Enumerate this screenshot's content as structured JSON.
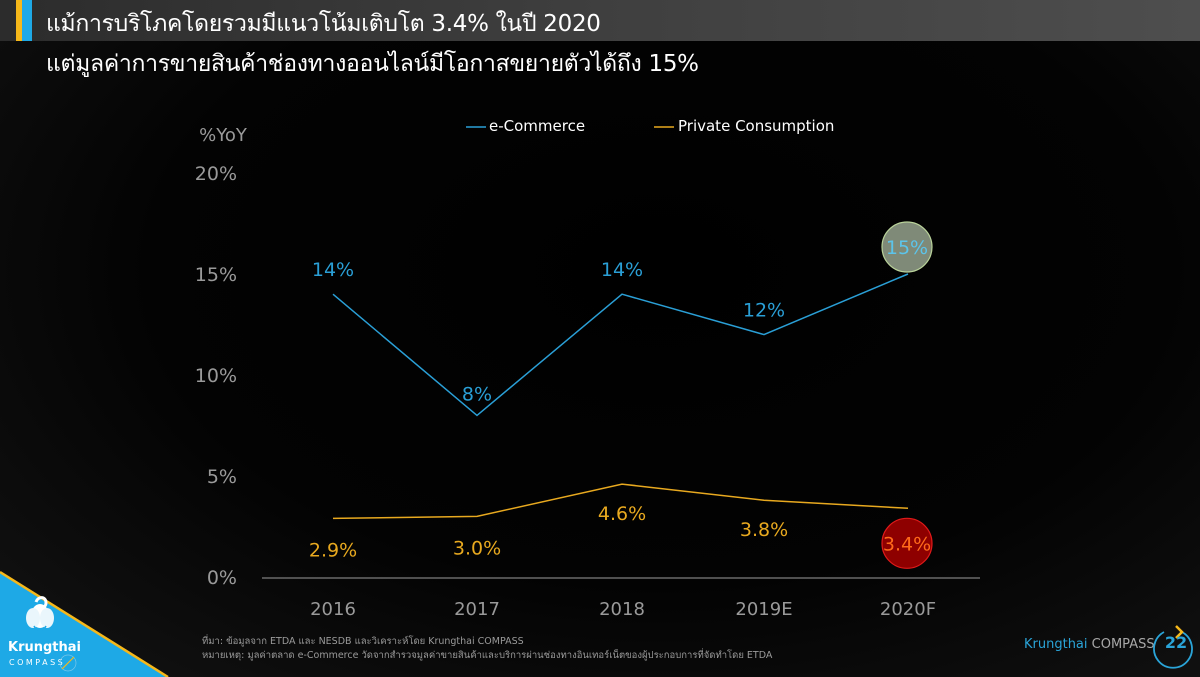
{
  "header": {
    "title_line1": "แม้การบริโภคโดยรวมมีแนวโน้มเติบโต 3.4% ในปี 2020",
    "title_line2": "แต่มูลค่าการขายสินค้าช่องทางออนไลน์มีโอกาสขยายตัวได้ถึง 15%"
  },
  "colors": {
    "accent_yellow": "#f6b81a",
    "accent_blue": "#1ea9e6",
    "ecommerce": "#2a9fd6",
    "private_consumption": "#e8a91f",
    "highlight_ecommerce_fill": "#7f8a78",
    "highlight_ecommerce_stroke": "#b9d29a",
    "highlight_private_fill": "#8e0000",
    "highlight_private_stroke": "#e01a1a",
    "highlight_private_text": "#ff6a1a",
    "axis_text": "#9a9a9a"
  },
  "chart_data": {
    "type": "line",
    "title": "",
    "ylabel": "%YoY",
    "xlabel": "",
    "categories": [
      "2016",
      "2017",
      "2018",
      "2019E",
      "2020F"
    ],
    "ylim": [
      0,
      20
    ],
    "yticks": [
      0,
      5,
      10,
      15,
      20
    ],
    "ytick_labels": [
      "0%",
      "5%",
      "10%",
      "15%",
      "20%"
    ],
    "grid": false,
    "legend_position": "top-center",
    "series": [
      {
        "name": "e-Commerce",
        "values": [
          14,
          8,
          14,
          12,
          15
        ],
        "labels": [
          "14%",
          "8%",
          "14%",
          "12%",
          "15%"
        ],
        "highlight_index": 4
      },
      {
        "name": "Private Consumption",
        "values": [
          2.9,
          3.0,
          4.6,
          3.8,
          3.4
        ],
        "labels": [
          "2.9%",
          "3.0%",
          "4.6%",
          "3.8%",
          "3.4%"
        ],
        "highlight_index": 4
      }
    ]
  },
  "footnotes": {
    "source": "ที่มา: ข้อมูลจาก ETDA และ NESDB และวิเคราะห์โดย Krungthai COMPASS",
    "note": "หมายเหตุ: มูลค่าตลาด e-Commerce วัดจากสำรวจมูลค่าขายสินค้าและบริการผ่านช่องทางอินเทอร์เน็ตของผู้ประกอบการที่จัดทำโดย ETDA"
  },
  "logo": {
    "name_line1": "Krungthai",
    "name_line2": "COMPASS",
    "icon": "krungthai-bird-logo-icon"
  },
  "footer": {
    "brand_part1": "Krungthai",
    "brand_part2": "COMPASS",
    "page_number": "22"
  }
}
